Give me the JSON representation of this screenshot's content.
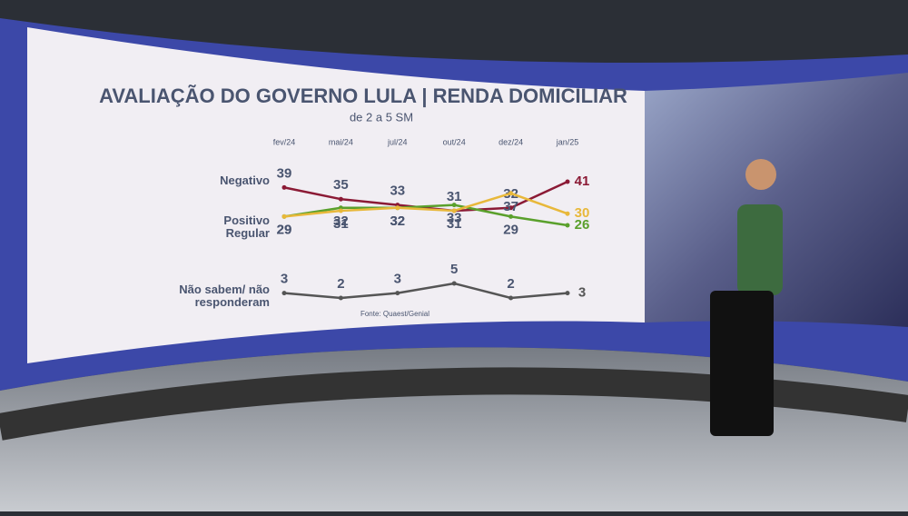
{
  "chart_data": {
    "type": "line",
    "title": "AVALIAÇÃO DO GOVERNO LULA | RENDA DOMICILIAR",
    "subtitle": "de 2 a 5 SM",
    "source": "Fonte: Quaest/Genial",
    "categories": [
      "fev/24",
      "mai/24",
      "jul/24",
      "out/24",
      "dez/24",
      "jan/25"
    ],
    "series": [
      {
        "name": "Negativo",
        "color": "#8b1a35",
        "values": [
          39,
          35,
          33,
          31,
          32,
          41
        ]
      },
      {
        "name": "Positivo",
        "color": "#5aa02c",
        "values": [
          29,
          32,
          32,
          33,
          29,
          26
        ]
      },
      {
        "name": "Regular",
        "color": "#e8b83a",
        "values": [
          29,
          31,
          32,
          31,
          37,
          30
        ]
      },
      {
        "name": "Não sabem/ não responderam",
        "color": "#555555",
        "values": [
          3,
          2,
          3,
          5,
          2,
          3
        ]
      }
    ]
  }
}
